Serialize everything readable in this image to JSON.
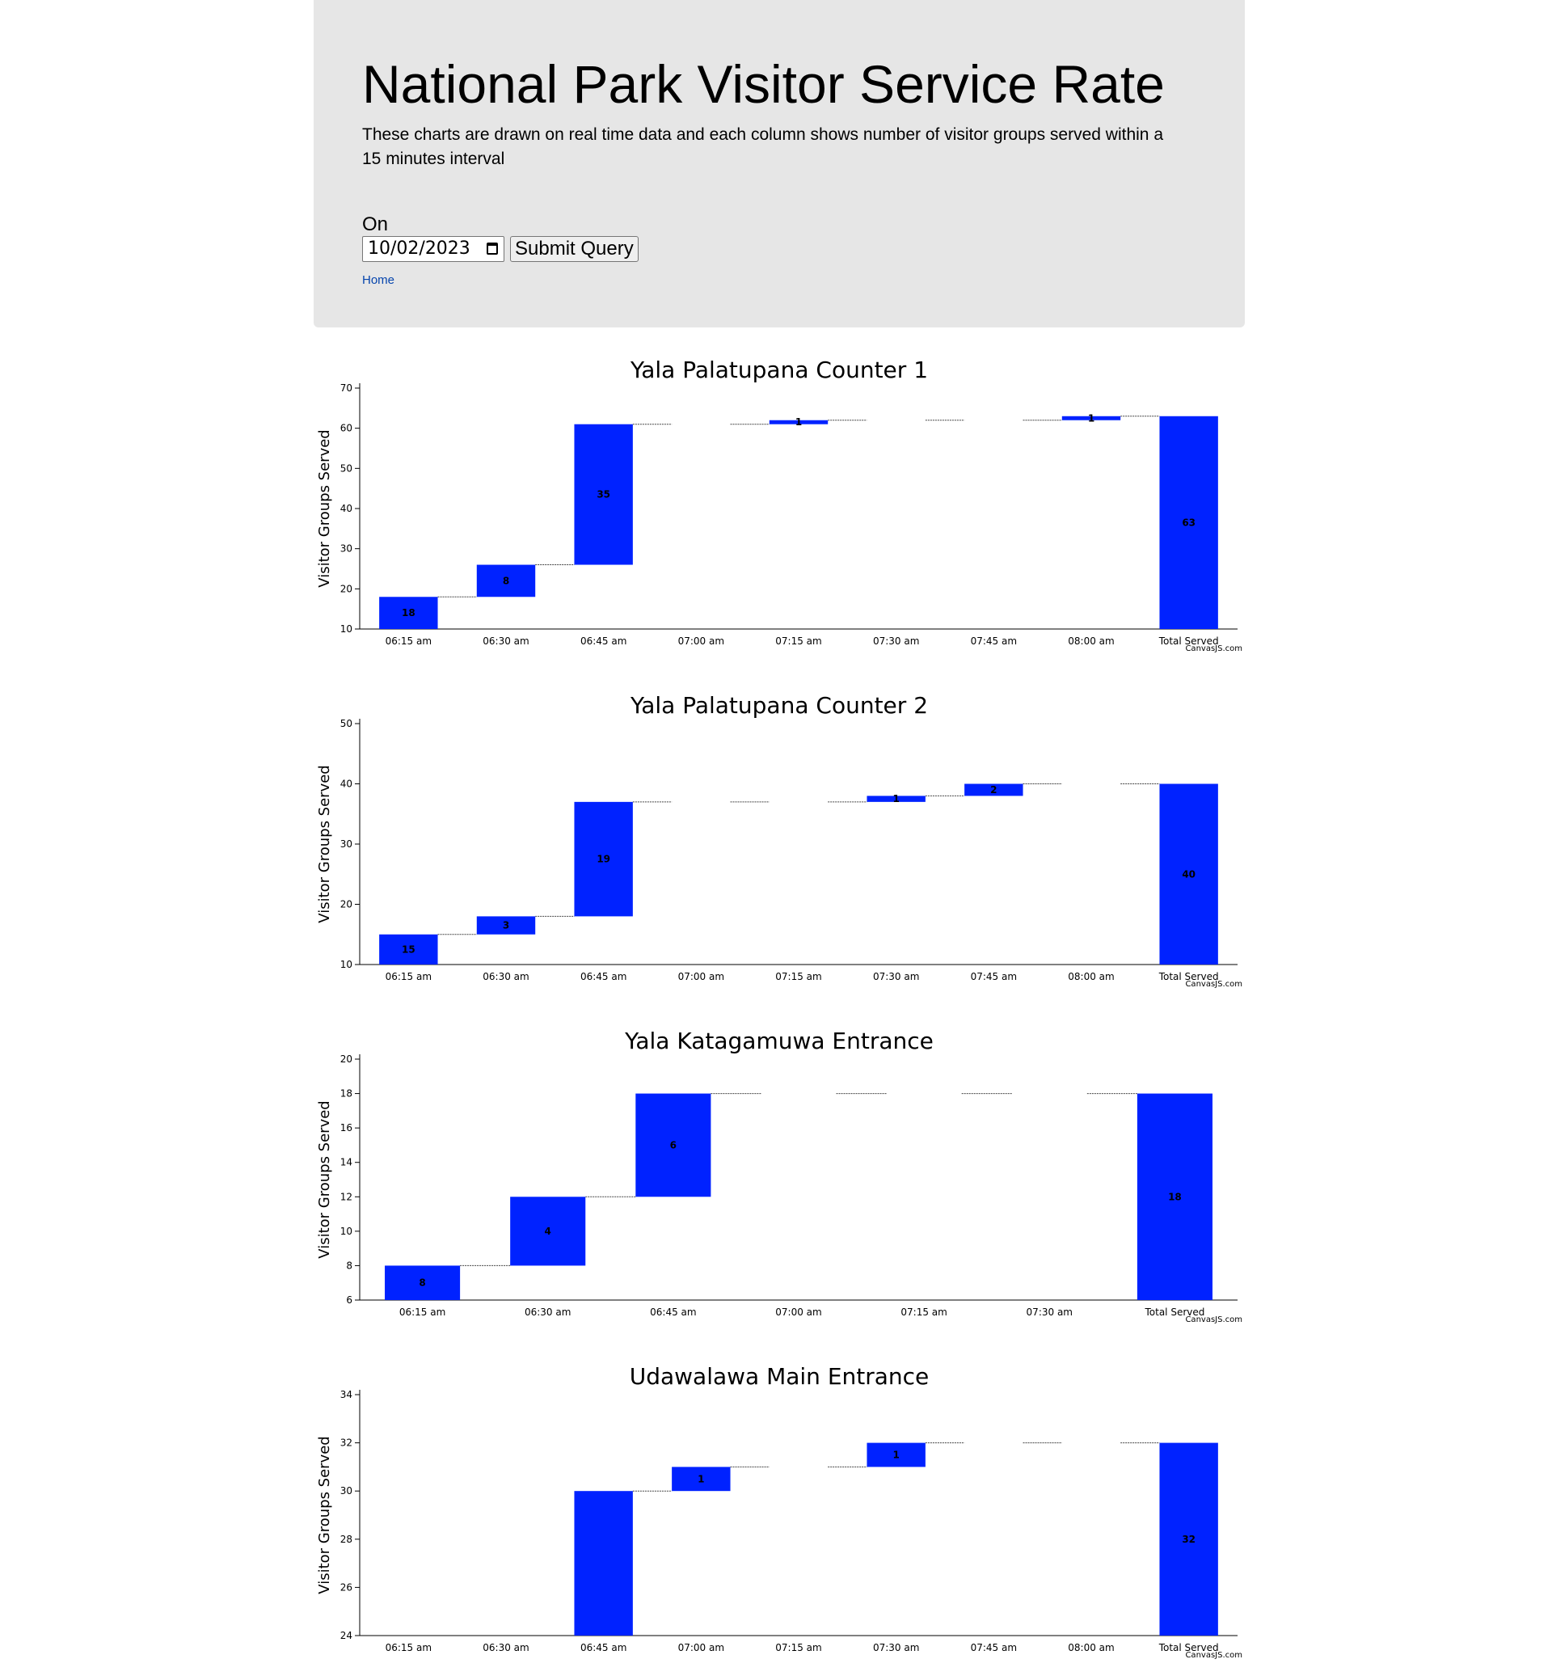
{
  "header": {
    "title": "National Park Visitor Service Rate",
    "description": "These charts are drawn on real time data and each column shows number of visitor groups served within a 15 minutes interval",
    "on_label": "On",
    "date_value": "10/02/2023",
    "submit_label": "Submit Query",
    "home_label": "Home"
  },
  "colors": {
    "bar": "#0022ff",
    "panel": "#e6e6e6",
    "link": "#0645ad"
  },
  "credit": "CanvasJS.com",
  "chart_data": [
    {
      "type": "waterfall",
      "title": "Yala Palatupana Counter 1",
      "ylabel": "Visitor Groups Served",
      "ylim": [
        10,
        70
      ],
      "yticks": [
        10,
        20,
        30,
        40,
        50,
        60,
        70
      ],
      "categories": [
        "06:15 am",
        "06:30 am",
        "06:45 am",
        "07:00 am",
        "07:15 am",
        "07:30 am",
        "07:45 am",
        "08:00 am",
        "Total Served"
      ],
      "values": [
        18,
        8,
        35,
        0,
        1,
        0,
        0,
        1,
        63
      ],
      "total_index": 8
    },
    {
      "type": "waterfall",
      "title": "Yala Palatupana Counter 2",
      "ylabel": "Visitor Groups Served",
      "ylim": [
        10,
        50
      ],
      "yticks": [
        10,
        20,
        30,
        40,
        50
      ],
      "categories": [
        "06:15 am",
        "06:30 am",
        "06:45 am",
        "07:00 am",
        "07:15 am",
        "07:30 am",
        "07:45 am",
        "08:00 am",
        "Total Served"
      ],
      "values": [
        15,
        3,
        19,
        0,
        0,
        1,
        2,
        0,
        40
      ],
      "total_index": 8
    },
    {
      "type": "waterfall",
      "title": "Yala Katagamuwa Entrance",
      "ylabel": "Visitor Groups Served",
      "ylim": [
        6,
        20
      ],
      "yticks": [
        6,
        8,
        10,
        12,
        14,
        16,
        18,
        20
      ],
      "categories": [
        "06:15 am",
        "06:30 am",
        "06:45 am",
        "07:00 am",
        "07:15 am",
        "07:30 am",
        "Total Served"
      ],
      "values": [
        8,
        4,
        6,
        0,
        0,
        0,
        18
      ],
      "total_index": 6
    },
    {
      "type": "waterfall",
      "title": "Udawalawa Main Entrance",
      "ylabel": "Visitor Groups Served",
      "ylim": [
        24,
        34
      ],
      "yticks": [
        24,
        26,
        28,
        30,
        32,
        34
      ],
      "categories": [
        "06:15 am",
        "06:30 am",
        "06:45 am",
        "07:00 am",
        "07:15 am",
        "07:30 am",
        "07:45 am",
        "08:00 am",
        "Total Served"
      ],
      "values": [
        null,
        null,
        null,
        1,
        0,
        1,
        0,
        0,
        32
      ],
      "running_end": [
        null,
        null,
        30,
        31,
        31,
        32,
        32,
        32,
        32
      ],
      "total_index": 8
    }
  ]
}
